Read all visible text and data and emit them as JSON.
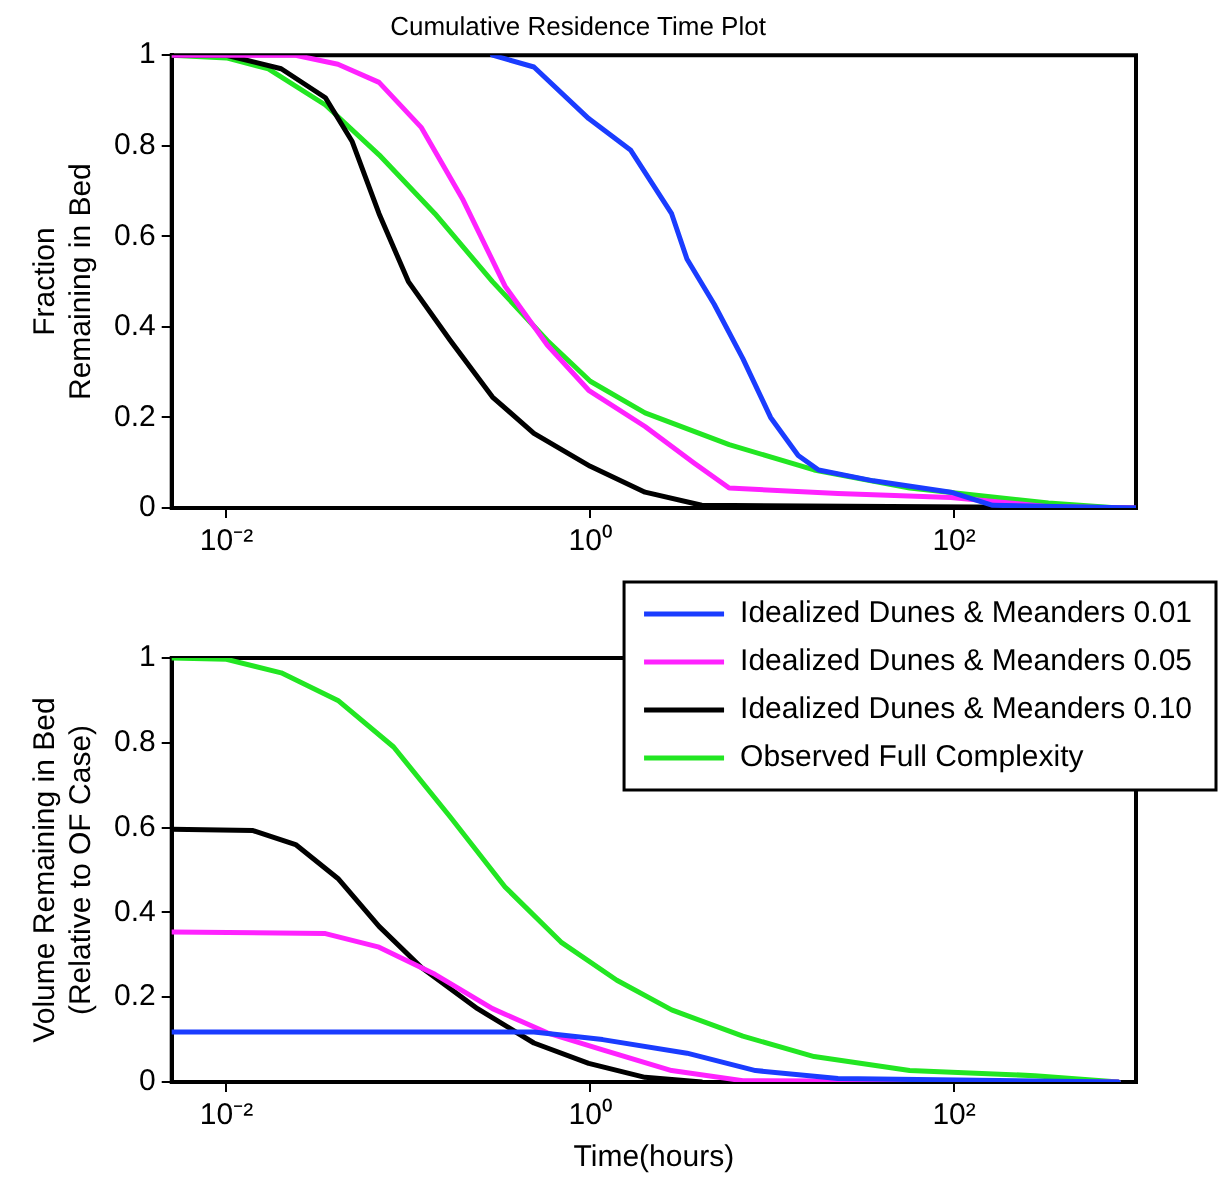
{
  "chart_data": [
    {
      "type": "line",
      "title": "Cumulative Residence Time Plot",
      "ylabel": "Fraction\nRemaining in Bed",
      "log": "x",
      "xlim": [
        0.005,
        1000
      ],
      "xticks": [
        {
          "value": 0.01,
          "label": "10⁻²"
        },
        {
          "value": 1,
          "label": "10⁰"
        },
        {
          "value": 100,
          "label": "10²"
        }
      ],
      "ylim": [
        0,
        1
      ],
      "yticks": [
        0,
        0.2,
        0.4,
        0.6,
        0.8,
        1
      ],
      "grid": false,
      "legend": false,
      "marker": "none",
      "line_style": "solid",
      "series": [
        {
          "color": "#1a3cff",
          "x": [
            0.29,
            0.49,
            0.98,
            1.67,
            2.8,
            3.4,
            4.8,
            6.9,
            9.8,
            13.9,
            18,
            36,
            96,
            163,
            1000
          ],
          "values": [
            1,
            0.974,
            0.86,
            0.79,
            0.65,
            0.55,
            0.45,
            0.33,
            0.2,
            0.116,
            0.084,
            0.06,
            0.035,
            0.006,
            0
          ]
        },
        {
          "color": "#ff22ff",
          "x": [
            0.005,
            0.024,
            0.041,
            0.069,
            0.118,
            0.2,
            0.34,
            0.58,
            0.98,
            2.0,
            3.7,
            5.8,
            23,
            96,
            330,
            1000
          ],
          "values": [
            1,
            1,
            0.98,
            0.94,
            0.84,
            0.68,
            0.49,
            0.36,
            0.26,
            0.18,
            0.1,
            0.044,
            0.032,
            0.023,
            0.003,
            0
          ]
        },
        {
          "color": "#000000",
          "x": [
            0.005,
            0.01,
            0.02,
            0.035,
            0.049,
            0.069,
            0.1,
            0.17,
            0.29,
            0.49,
            1,
            2,
            4.1,
            1000
          ],
          "values": [
            1,
            1,
            0.97,
            0.906,
            0.81,
            0.65,
            0.5,
            0.37,
            0.245,
            0.165,
            0.092,
            0.035,
            0.006,
            0
          ]
        },
        {
          "color": "#22e622",
          "x": [
            0.005,
            0.01,
            0.017,
            0.035,
            0.069,
            0.14,
            0.29,
            0.58,
            1,
            2,
            5.8,
            17,
            57,
            330,
            800
          ],
          "values": [
            1,
            0.994,
            0.97,
            0.89,
            0.78,
            0.65,
            0.5,
            0.37,
            0.28,
            0.21,
            0.14,
            0.084,
            0.044,
            0.011,
            0
          ]
        }
      ]
    },
    {
      "type": "line",
      "xlabel": "Time(hours)",
      "ylabel": "Volume Remaining in Bed\n(Relative to OF Case)",
      "log": "x",
      "xlim": [
        0.005,
        1000
      ],
      "xticks": [
        {
          "value": 0.01,
          "label": "10⁻²"
        },
        {
          "value": 1,
          "label": "10⁰"
        },
        {
          "value": 100,
          "label": "10²"
        }
      ],
      "ylim": [
        0,
        1
      ],
      "yticks": [
        0,
        0.2,
        0.4,
        0.6,
        0.8,
        1
      ],
      "grid": false,
      "legend": "top right",
      "marker": "none",
      "line_style": "solid",
      "series": [
        {
          "name": "Idealized Dunes & Meanders 0.01",
          "color": "#1a3cff",
          "x": [
            0.005,
            0.49,
            1.17,
            3.4,
            8.1,
            23,
            800
          ],
          "values": [
            0.118,
            0.118,
            0.1,
            0.068,
            0.027,
            0.008,
            0
          ]
        },
        {
          "name": "Idealized Dunes & Meanders 0.05",
          "color": "#ff22ff",
          "x": [
            0.005,
            0.035,
            0.069,
            0.14,
            0.29,
            0.58,
            1.17,
            2.8,
            6.9,
            800
          ],
          "values": [
            0.354,
            0.35,
            0.318,
            0.254,
            0.173,
            0.116,
            0.076,
            0.027,
            0.003,
            0
          ]
        },
        {
          "name": "Idealized Dunes & Meanders 0.10",
          "color": "#000000",
          "x": [
            0.005,
            0.014,
            0.024,
            0.041,
            0.069,
            0.118,
            0.24,
            0.49,
            0.98,
            2.0,
            4.1
          ],
          "values": [
            0.596,
            0.593,
            0.56,
            0.48,
            0.367,
            0.27,
            0.173,
            0.092,
            0.044,
            0.011,
            0
          ]
        },
        {
          "name": "Observed Full Complexity",
          "color": "#22e622",
          "x": [
            0.005,
            0.01,
            0.02,
            0.041,
            0.083,
            0.17,
            0.34,
            0.69,
            1.4,
            2.8,
            6.9,
            17,
            57,
            278,
            800
          ],
          "values": [
            1,
            0.997,
            0.965,
            0.9,
            0.79,
            0.625,
            0.46,
            0.33,
            0.24,
            0.17,
            0.108,
            0.06,
            0.027,
            0.015,
            0
          ]
        }
      ]
    }
  ]
}
